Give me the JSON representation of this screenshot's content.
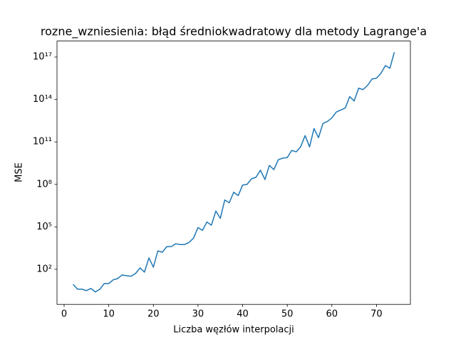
{
  "chart_data": {
    "type": "line",
    "title": "rozne_wzniesienia: błąd średniokwadratowy dla metody Lagrange'a",
    "x_label": "Liczba węzłów interpolacji",
    "y_label": "MSE",
    "x": [
      2,
      3,
      4,
      5,
      6,
      7,
      8,
      9,
      10,
      11,
      12,
      13,
      14,
      15,
      16,
      17,
      18,
      19,
      20,
      21,
      22,
      23,
      24,
      25,
      26,
      27,
      28,
      29,
      30,
      31,
      32,
      33,
      34,
      35,
      36,
      37,
      38,
      39,
      40,
      41,
      42,
      43,
      44,
      45,
      46,
      47,
      48,
      49,
      50,
      51,
      52,
      53,
      54,
      55,
      56,
      57,
      58,
      59,
      60,
      61,
      62,
      63,
      64,
      65,
      66,
      67,
      68,
      69,
      70,
      71,
      72,
      73,
      74
    ],
    "values": [
      8.7,
      3.9,
      3.9,
      3.1,
      4.4,
      2.5,
      3.9,
      9.8,
      9.8,
      18,
      22,
      40,
      35,
      32,
      50,
      126,
      63,
      630,
      141,
      2000,
      1600,
      4000,
      4000,
      6300,
      5600,
      5600,
      7900,
      16000,
      89000,
      56000,
      220000,
      130000,
      1300000,
      400000,
      7900000,
      5000000,
      28000000,
      16000000,
      89000000,
      100000000,
      250000000,
      320000000,
      1000000000,
      220000000,
      2200000000,
      1100000000,
      5600000000,
      7100000000,
      7900000000,
      25000000000,
      20000000000,
      45000000000,
      280000000000,
      45000000000,
      890000000000,
      200000000000,
      2000000000000,
      2800000000000,
      5000000000000,
      13000000000000,
      18000000000000,
      25000000000000,
      160000000000000,
      79000000000000,
      630000000000000,
      500000000000000,
      1000000000000000,
      2800000000000000,
      3200000000000000,
      7100000000000000,
      25000000000000000,
      16000000000000000,
      220000000000000000
    ],
    "color": "#1f77b4",
    "xlim": [
      -1.6,
      77.6
    ],
    "xticks": [
      0,
      10,
      20,
      30,
      40,
      50,
      60,
      70
    ],
    "ylim": [
      0.33,
      1.35e+18
    ],
    "yscale": "log",
    "yticks": [
      {
        "value": 100,
        "label": "10²"
      },
      {
        "value": 100000,
        "label": "10⁵"
      },
      {
        "value": 100000000,
        "label": "10⁸"
      },
      {
        "value": 100000000000,
        "label": "10¹¹"
      },
      {
        "value": 100000000000000,
        "label": "10¹⁴"
      },
      {
        "value": 100000000000000000,
        "label": "10¹⁷"
      }
    ]
  }
}
